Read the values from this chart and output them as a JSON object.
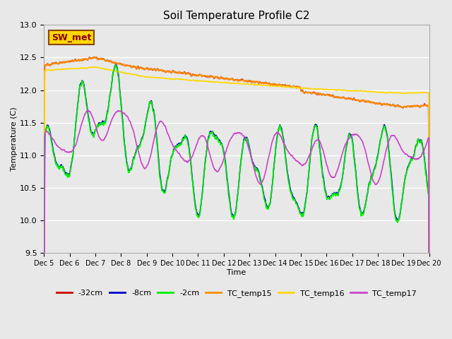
{
  "title": "Soil Temperature Profile C2",
  "xlabel": "Time",
  "ylabel": "Temperature (C)",
  "ylim": [
    9.5,
    13.0
  ],
  "background_color": "#e8e8e8",
  "plot_bg_color": "#e8e8e8",
  "xtick_labels": [
    "Dec 5",
    "Dec 6",
    "Dec 7",
    "Dec 8",
    "Dec 9",
    "Dec 10",
    "Dec 11",
    "Dec 12",
    "Dec 13",
    "Dec 14",
    "Dec 15",
    "Dec 16",
    "Dec 17",
    "Dec 18",
    "Dec 19",
    "Dec 20"
  ],
  "series": {
    "TC_temp15": {
      "color": "#FF8C00",
      "linewidth": 1.2
    },
    "TC_temp16": {
      "color": "#FFD700",
      "linewidth": 1.2
    },
    "TC_temp17": {
      "color": "#CC44CC",
      "linewidth": 1.2
    },
    "neg2cm": {
      "color": "#00EE00",
      "linewidth": 1.2
    },
    "neg8cm": {
      "color": "#0000CC",
      "linewidth": 1.2
    },
    "neg32cm": {
      "color": "#CC0000",
      "linewidth": 1.2
    }
  },
  "annotation": {
    "text": "SW_met",
    "fontsize": 9,
    "color": "#8B0000",
    "bbox_facecolor": "#FFD700",
    "bbox_edgecolor": "#8B4513"
  }
}
